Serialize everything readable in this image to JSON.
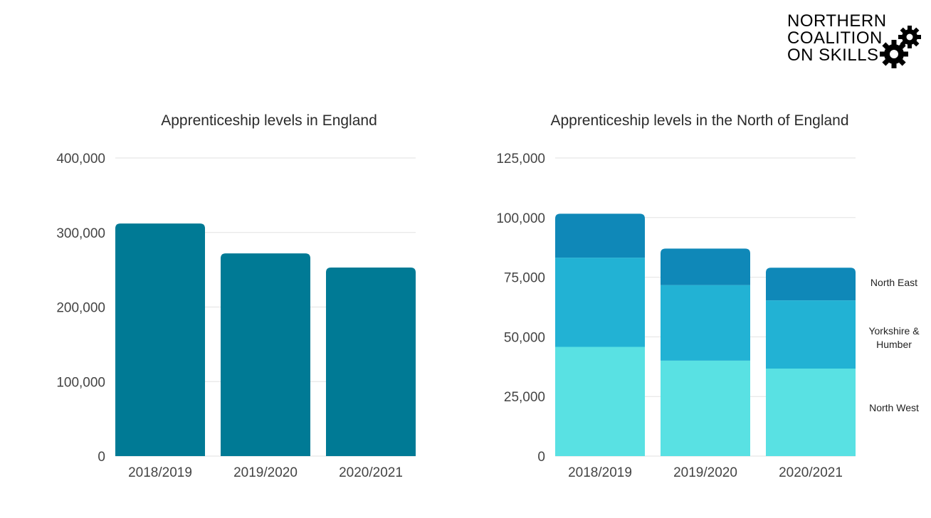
{
  "logo": {
    "lines": [
      "NORTHERN",
      "COALITION",
      "ON SKILLS"
    ]
  },
  "chart_data": [
    {
      "type": "bar",
      "title": "Apprenticeship levels in England",
      "categories": [
        "2018/2019",
        "2019/2020",
        "2020/2021"
      ],
      "values": [
        312000,
        272000,
        253000
      ],
      "ylim": [
        0,
        400000
      ],
      "yticks": [
        "0",
        "100,000",
        "200,000",
        "300,000",
        "400,000"
      ],
      "grid": true,
      "color": "#007a95"
    },
    {
      "type": "bar",
      "stacked": true,
      "title": "Apprenticeship levels in the North of England",
      "categories": [
        "2018/2019",
        "2019/2020",
        "2020/2021"
      ],
      "series": [
        {
          "name": "North West",
          "values": [
            45800,
            40000,
            36700
          ],
          "color": "#59e1e3"
        },
        {
          "name": "Yorkshire & Humber",
          "values": [
            37400,
            31700,
            28600
          ],
          "color": "#22b2d4"
        },
        {
          "name": "North East",
          "values": [
            18400,
            15300,
            13700
          ],
          "color": "#0f88b8"
        }
      ],
      "ylim": [
        0,
        125000
      ],
      "yticks": [
        "0",
        "25,000",
        "50,000",
        "75,000",
        "100,000",
        "125,000"
      ],
      "grid": true,
      "legend": "right"
    }
  ]
}
